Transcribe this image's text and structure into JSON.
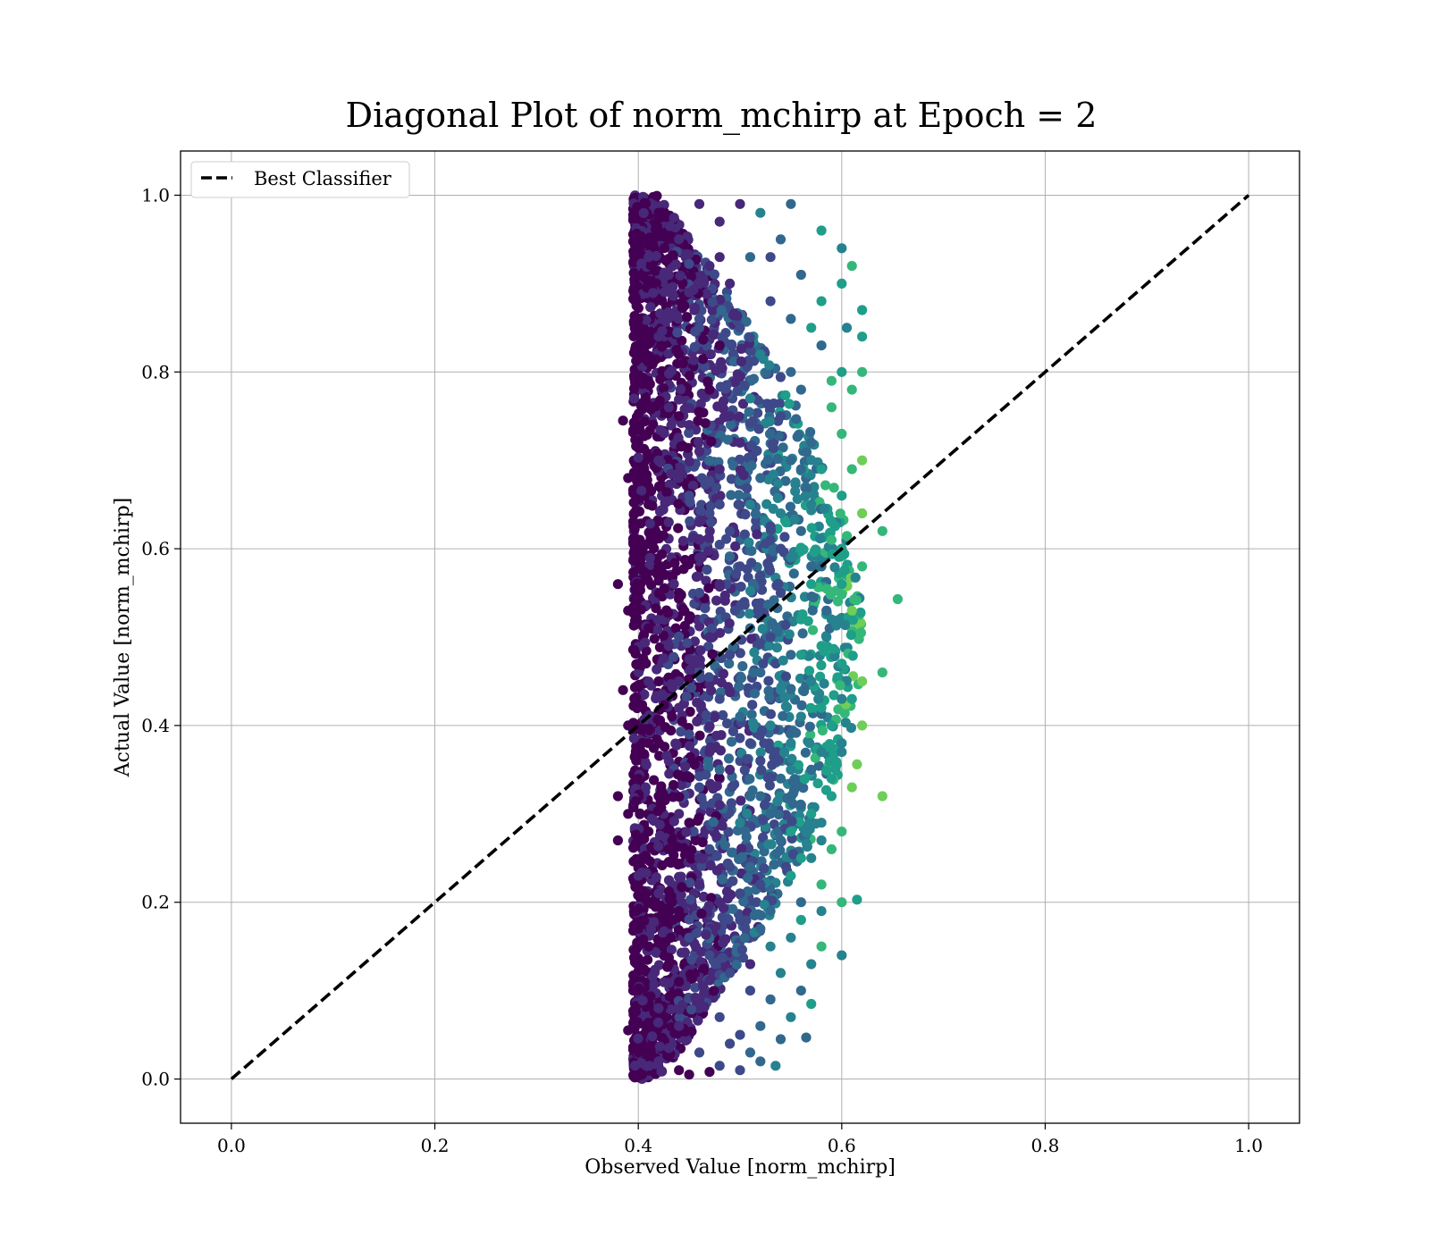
{
  "chart_data": {
    "type": "scatter",
    "title": "Diagonal Plot of norm_mchirp at Epoch = 2",
    "xlabel": "Observed Value [norm_mchirp]",
    "ylabel": "Actual Value [norm_mchirp]",
    "xlim": [
      -0.05,
      1.05
    ],
    "ylim": [
      -0.05,
      1.05
    ],
    "xticks": [
      0.0,
      0.2,
      0.4,
      0.6,
      0.8,
      1.0
    ],
    "yticks": [
      0.0,
      0.2,
      0.4,
      0.6,
      0.8,
      1.0
    ],
    "xtick_labels": [
      "0.0",
      "0.2",
      "0.4",
      "0.6",
      "0.8",
      "1.0"
    ],
    "ytick_labels": [
      "0.0",
      "0.2",
      "0.4",
      "0.6",
      "0.8",
      "1.0"
    ],
    "grid": true,
    "legend": {
      "placement": "top-left",
      "entries": [
        {
          "label": "Best Classifier",
          "style": "dashed",
          "color": "#000000"
        }
      ]
    },
    "lines": [
      {
        "name": "Best Classifier",
        "x": [
          0.0,
          1.0
        ],
        "y": [
          0.0,
          1.0
        ],
        "style": "dashed",
        "color": "#000000"
      }
    ],
    "scatter": {
      "colormap": "viridis",
      "colors": [
        "#440154",
        "#482878",
        "#3e4989",
        "#31688e",
        "#26828e",
        "#1f9e89",
        "#35b779",
        "#6ece58",
        "#b5de2b",
        "#fde725"
      ],
      "observed_range": [
        0.38,
        0.655
      ],
      "actual_range": [
        0.0,
        1.0
      ],
      "points": [
        [
          0.42,
          0.98
        ],
        [
          0.44,
          0.95
        ],
        [
          0.46,
          0.99
        ],
        [
          0.48,
          0.97
        ],
        [
          0.5,
          0.99
        ],
        [
          0.52,
          0.98
        ],
        [
          0.54,
          0.95
        ],
        [
          0.55,
          0.99
        ],
        [
          0.58,
          0.96
        ],
        [
          0.6,
          0.94
        ],
        [
          0.61,
          0.92
        ],
        [
          0.62,
          0.87
        ],
        [
          0.6,
          0.9
        ],
        [
          0.58,
          0.88
        ],
        [
          0.56,
          0.91
        ],
        [
          0.62,
          0.84
        ],
        [
          0.41,
          0.93
        ],
        [
          0.43,
          0.91
        ],
        [
          0.45,
          0.89
        ],
        [
          0.47,
          0.92
        ],
        [
          0.49,
          0.9
        ],
        [
          0.51,
          0.93
        ],
        [
          0.53,
          0.88
        ],
        [
          0.57,
          0.85
        ],
        [
          0.4,
          0.86
        ],
        [
          0.42,
          0.84
        ],
        [
          0.44,
          0.82
        ],
        [
          0.46,
          0.86
        ],
        [
          0.48,
          0.83
        ],
        [
          0.5,
          0.85
        ],
        [
          0.52,
          0.82
        ],
        [
          0.55,
          0.8
        ],
        [
          0.58,
          0.83
        ],
        [
          0.6,
          0.8
        ],
        [
          0.62,
          0.8
        ],
        [
          0.61,
          0.78
        ],
        [
          0.59,
          0.76
        ],
        [
          0.56,
          0.78
        ],
        [
          0.54,
          0.75
        ],
        [
          0.41,
          0.79
        ],
        [
          0.43,
          0.76
        ],
        [
          0.45,
          0.74
        ],
        [
          0.47,
          0.78
        ],
        [
          0.49,
          0.75
        ],
        [
          0.51,
          0.77
        ],
        [
          0.53,
          0.73
        ],
        [
          0.57,
          0.72
        ],
        [
          0.6,
          0.73
        ],
        [
          0.385,
          0.745
        ],
        [
          0.4,
          0.72
        ],
        [
          0.42,
          0.7
        ],
        [
          0.44,
          0.68
        ],
        [
          0.46,
          0.71
        ],
        [
          0.48,
          0.69
        ],
        [
          0.5,
          0.72
        ],
        [
          0.52,
          0.68
        ],
        [
          0.55,
          0.7
        ],
        [
          0.58,
          0.69
        ],
        [
          0.61,
          0.69
        ],
        [
          0.62,
          0.7
        ],
        [
          0.6,
          0.66
        ],
        [
          0.57,
          0.65
        ],
        [
          0.54,
          0.64
        ],
        [
          0.39,
          0.68
        ],
        [
          0.41,
          0.65
        ],
        [
          0.43,
          0.63
        ],
        [
          0.45,
          0.66
        ],
        [
          0.47,
          0.64
        ],
        [
          0.49,
          0.62
        ],
        [
          0.51,
          0.65
        ],
        [
          0.53,
          0.61
        ],
        [
          0.56,
          0.62
        ],
        [
          0.59,
          0.61
        ],
        [
          0.62,
          0.64
        ],
        [
          0.64,
          0.62
        ],
        [
          0.6,
          0.6
        ],
        [
          0.58,
          0.58
        ],
        [
          0.55,
          0.59
        ],
        [
          0.52,
          0.57
        ],
        [
          0.38,
          0.56
        ],
        [
          0.4,
          0.6
        ],
        [
          0.42,
          0.58
        ],
        [
          0.44,
          0.55
        ],
        [
          0.46,
          0.59
        ],
        [
          0.48,
          0.56
        ],
        [
          0.5,
          0.58
        ],
        [
          0.54,
          0.55
        ],
        [
          0.57,
          0.56
        ],
        [
          0.6,
          0.56
        ],
        [
          0.62,
          0.58
        ],
        [
          0.655,
          0.543
        ],
        [
          0.61,
          0.53
        ],
        [
          0.59,
          0.52
        ],
        [
          0.56,
          0.52
        ],
        [
          0.53,
          0.5
        ],
        [
          0.39,
          0.53
        ],
        [
          0.41,
          0.51
        ],
        [
          0.43,
          0.49
        ],
        [
          0.45,
          0.52
        ],
        [
          0.47,
          0.5
        ],
        [
          0.49,
          0.48
        ],
        [
          0.51,
          0.51
        ],
        [
          0.55,
          0.48
        ],
        [
          0.58,
          0.49
        ],
        [
          0.6,
          0.47
        ],
        [
          0.62,
          0.45
        ],
        [
          0.64,
          0.46
        ],
        [
          0.61,
          0.43
        ],
        [
          0.57,
          0.45
        ],
        [
          0.54,
          0.44
        ],
        [
          0.52,
          0.46
        ],
        [
          0.385,
          0.44
        ],
        [
          0.4,
          0.47
        ],
        [
          0.42,
          0.45
        ],
        [
          0.44,
          0.42
        ],
        [
          0.46,
          0.46
        ],
        [
          0.48,
          0.43
        ],
        [
          0.5,
          0.41
        ],
        [
          0.53,
          0.4
        ],
        [
          0.56,
          0.41
        ],
        [
          0.59,
          0.4
        ],
        [
          0.6,
          0.43
        ],
        [
          0.62,
          0.4
        ],
        [
          0.6,
          0.38
        ],
        [
          0.58,
          0.37
        ],
        [
          0.55,
          0.38
        ],
        [
          0.52,
          0.36
        ],
        [
          0.39,
          0.4
        ],
        [
          0.41,
          0.38
        ],
        [
          0.43,
          0.36
        ],
        [
          0.45,
          0.39
        ],
        [
          0.47,
          0.37
        ],
        [
          0.49,
          0.35
        ],
        [
          0.51,
          0.38
        ],
        [
          0.54,
          0.34
        ],
        [
          0.57,
          0.35
        ],
        [
          0.6,
          0.37
        ],
        [
          0.615,
          0.356
        ],
        [
          0.61,
          0.33
        ],
        [
          0.64,
          0.32
        ],
        [
          0.59,
          0.32
        ],
        [
          0.56,
          0.31
        ],
        [
          0.53,
          0.3
        ],
        [
          0.38,
          0.32
        ],
        [
          0.4,
          0.34
        ],
        [
          0.42,
          0.32
        ],
        [
          0.44,
          0.3
        ],
        [
          0.46,
          0.33
        ],
        [
          0.48,
          0.31
        ],
        [
          0.5,
          0.29
        ],
        [
          0.52,
          0.32
        ],
        [
          0.55,
          0.28
        ],
        [
          0.58,
          0.29
        ],
        [
          0.6,
          0.28
        ],
        [
          0.59,
          0.26
        ],
        [
          0.57,
          0.25
        ],
        [
          0.54,
          0.27
        ],
        [
          0.51,
          0.24
        ],
        [
          0.38,
          0.27
        ],
        [
          0.39,
          0.3
        ],
        [
          0.41,
          0.28
        ],
        [
          0.43,
          0.26
        ],
        [
          0.45,
          0.29
        ],
        [
          0.47,
          0.26
        ],
        [
          0.49,
          0.24
        ],
        [
          0.52,
          0.22
        ],
        [
          0.55,
          0.23
        ],
        [
          0.58,
          0.22
        ],
        [
          0.615,
          0.203
        ],
        [
          0.6,
          0.2
        ],
        [
          0.58,
          0.19
        ],
        [
          0.56,
          0.2
        ],
        [
          0.53,
          0.19
        ],
        [
          0.5,
          0.21
        ],
        [
          0.4,
          0.23
        ],
        [
          0.42,
          0.21
        ],
        [
          0.44,
          0.19
        ],
        [
          0.46,
          0.22
        ],
        [
          0.48,
          0.2
        ],
        [
          0.5,
          0.18
        ],
        [
          0.52,
          0.17
        ],
        [
          0.55,
          0.16
        ],
        [
          0.58,
          0.15
        ],
        [
          0.6,
          0.14
        ],
        [
          0.57,
          0.13
        ],
        [
          0.54,
          0.12
        ],
        [
          0.51,
          0.13
        ],
        [
          0.4,
          0.17
        ],
        [
          0.41,
          0.15
        ],
        [
          0.43,
          0.13
        ],
        [
          0.45,
          0.16
        ],
        [
          0.47,
          0.14
        ],
        [
          0.49,
          0.12
        ],
        [
          0.51,
          0.1
        ],
        [
          0.53,
          0.09
        ],
        [
          0.56,
          0.1
        ],
        [
          0.57,
          0.085
        ],
        [
          0.55,
          0.07
        ],
        [
          0.52,
          0.06
        ],
        [
          0.4,
          0.1
        ],
        [
          0.42,
          0.08
        ],
        [
          0.44,
          0.06
        ],
        [
          0.46,
          0.09
        ],
        [
          0.48,
          0.07
        ],
        [
          0.5,
          0.05
        ],
        [
          0.54,
          0.045
        ],
        [
          0.565,
          0.047
        ],
        [
          0.39,
          0.055
        ],
        [
          0.4,
          0.03
        ],
        [
          0.42,
          0.02
        ],
        [
          0.44,
          0.01
        ],
        [
          0.46,
          0.03
        ],
        [
          0.48,
          0.015
        ],
        [
          0.5,
          0.01
        ],
        [
          0.52,
          0.02
        ],
        [
          0.535,
          0.015
        ],
        [
          0.45,
          0.005
        ],
        [
          0.47,
          0.008
        ],
        [
          0.43,
          0.035
        ],
        [
          0.49,
          0.04
        ],
        [
          0.51,
          0.03
        ],
        [
          0.44,
          0.11
        ],
        [
          0.46,
          0.25
        ],
        [
          0.48,
          0.35
        ],
        [
          0.44,
          0.45
        ],
        [
          0.46,
          0.55
        ],
        [
          0.48,
          0.65
        ],
        [
          0.44,
          0.75
        ],
        [
          0.46,
          0.85
        ],
        [
          0.48,
          0.93
        ],
        [
          0.53,
          0.15
        ],
        [
          0.55,
          0.35
        ],
        [
          0.54,
          0.6
        ],
        [
          0.56,
          0.69
        ],
        [
          0.55,
          0.86
        ],
        [
          0.53,
          0.93
        ],
        [
          0.57,
          0.58
        ],
        [
          0.58,
          0.42
        ],
        [
          0.57,
          0.3
        ],
        [
          0.56,
          0.25
        ],
        [
          0.605,
          0.85
        ],
        [
          0.59,
          0.79
        ],
        [
          0.59,
          0.63
        ],
        [
          0.585,
          0.5
        ],
        [
          0.56,
          0.48
        ],
        [
          0.59,
          0.34
        ],
        [
          0.58,
          0.27
        ],
        [
          0.56,
          0.18
        ]
      ]
    }
  }
}
